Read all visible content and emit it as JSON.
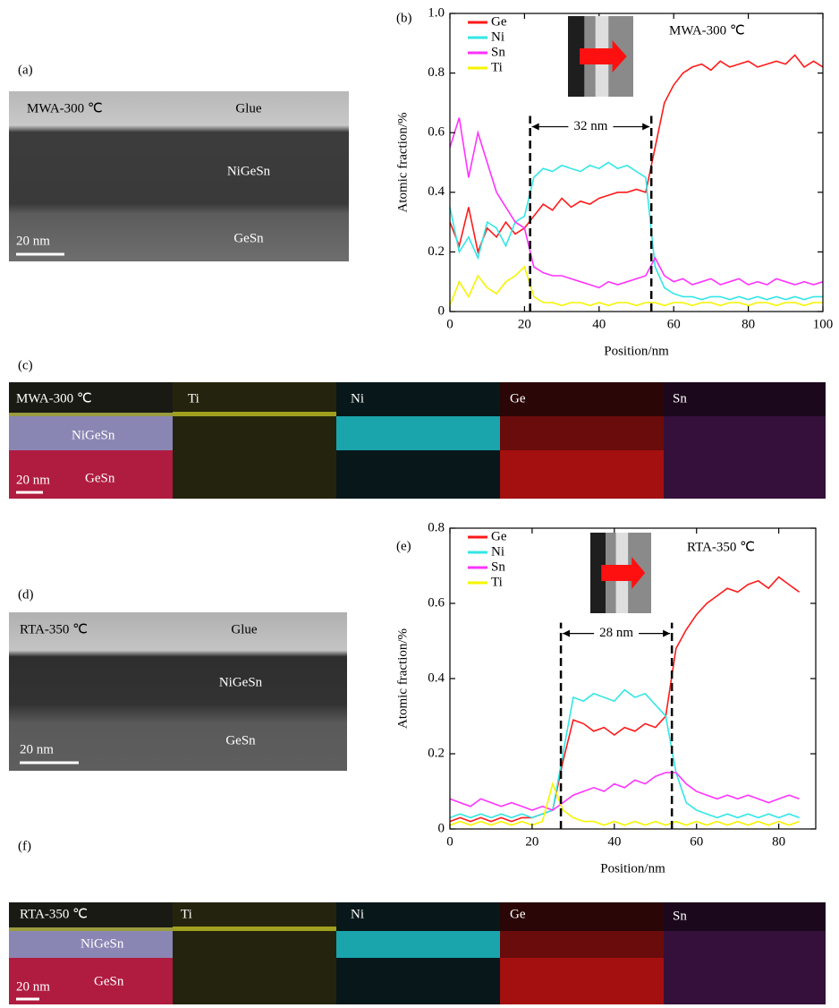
{
  "panels": {
    "a": {
      "label": "(a)",
      "sample": "MWA-300 ℃",
      "glue": "Glue",
      "layer": "NiGeSn",
      "substrate": "GeSn",
      "scale": "20 nm"
    },
    "b": {
      "label": "(b)"
    },
    "c": {
      "label": "(c)",
      "maps": [
        "MWA-300 ℃",
        "Ti",
        "Ni",
        "Ge",
        "Sn"
      ],
      "layer": "NiGeSn",
      "substrate": "GeSn",
      "scale": "20 nm"
    },
    "d": {
      "label": "(d)",
      "sample": "RTA-350 ℃",
      "glue": "Glue",
      "layer": "NiGeSn",
      "substrate": "GeSn",
      "scale": "20 nm"
    },
    "e": {
      "label": "(e)"
    },
    "f": {
      "label": "(f)",
      "maps": [
        "RTA-350 ℃",
        "Ti",
        "Ni",
        "Ge",
        "Sn"
      ],
      "layer": "NiGeSn",
      "substrate": "GeSn",
      "scale": "20 nm"
    }
  },
  "chart_data": [
    {
      "type": "line",
      "xlabel": "Position/nm",
      "ylabel": "Atomic fraction/%",
      "inset_title": "MWA-300 ℃",
      "xlim": [
        0,
        100
      ],
      "ylim": [
        0,
        1
      ],
      "xticks": [
        0,
        20,
        40,
        60,
        80,
        100
      ],
      "yticks": [
        0,
        0.2,
        0.4,
        0.6,
        0.8,
        {
          "value": 1,
          "label": "1.0"
        }
      ],
      "annotations": [
        {
          "text": "32 nm",
          "x": [
            21.5,
            54
          ],
          "y": 0.62
        }
      ],
      "x": [
        0,
        2.5,
        5,
        7.5,
        10,
        12.5,
        15,
        17.5,
        20,
        22.5,
        25,
        27.5,
        30,
        32.5,
        35,
        37.5,
        40,
        42.5,
        45,
        47.5,
        50,
        52.5,
        55,
        57.5,
        60,
        62.5,
        65,
        67.5,
        70,
        72.5,
        75,
        77.5,
        80,
        82.5,
        85,
        87.5,
        90,
        92.5,
        95,
        97.5,
        100
      ],
      "series": [
        {
          "name": "Ge",
          "color": "#ff1a1a",
          "values": [
            0.3,
            0.22,
            0.35,
            0.2,
            0.28,
            0.25,
            0.3,
            0.26,
            0.28,
            0.32,
            0.36,
            0.34,
            0.38,
            0.35,
            0.37,
            0.36,
            0.38,
            0.39,
            0.4,
            0.4,
            0.41,
            0.4,
            0.55,
            0.7,
            0.76,
            0.8,
            0.82,
            0.83,
            0.81,
            0.84,
            0.82,
            0.83,
            0.84,
            0.82,
            0.83,
            0.84,
            0.83,
            0.86,
            0.82,
            0.84,
            0.82
          ]
        },
        {
          "name": "Ni",
          "color": "#33e6e6",
          "values": [
            0.35,
            0.2,
            0.25,
            0.18,
            0.3,
            0.28,
            0.22,
            0.3,
            0.32,
            0.45,
            0.48,
            0.47,
            0.49,
            0.48,
            0.47,
            0.49,
            0.48,
            0.5,
            0.48,
            0.49,
            0.47,
            0.45,
            0.15,
            0.08,
            0.06,
            0.05,
            0.05,
            0.04,
            0.05,
            0.05,
            0.04,
            0.05,
            0.04,
            0.05,
            0.04,
            0.05,
            0.04,
            0.05,
            0.04,
            0.05,
            0.05
          ]
        },
        {
          "name": "Sn",
          "color": "#ff33ff",
          "values": [
            0.55,
            0.65,
            0.45,
            0.6,
            0.5,
            0.4,
            0.35,
            0.3,
            0.28,
            0.15,
            0.13,
            0.12,
            0.12,
            0.11,
            0.1,
            0.09,
            0.08,
            0.1,
            0.09,
            0.1,
            0.11,
            0.12,
            0.18,
            0.12,
            0.1,
            0.11,
            0.09,
            0.1,
            0.11,
            0.09,
            0.1,
            0.11,
            0.09,
            0.1,
            0.09,
            0.11,
            0.1,
            0.09,
            0.1,
            0.09,
            0.1
          ]
        },
        {
          "name": "Ti",
          "color": "#f5f500",
          "values": [
            0.02,
            0.1,
            0.05,
            0.12,
            0.08,
            0.06,
            0.1,
            0.12,
            0.15,
            0.05,
            0.03,
            0.03,
            0.02,
            0.03,
            0.03,
            0.02,
            0.03,
            0.02,
            0.03,
            0.03,
            0.02,
            0.03,
            0.03,
            0.02,
            0.03,
            0.03,
            0.02,
            0.03,
            0.03,
            0.02,
            0.03,
            0.03,
            0.02,
            0.03,
            0.03,
            0.02,
            0.03,
            0.03,
            0.02,
            0.03,
            0.03
          ]
        }
      ]
    },
    {
      "type": "line",
      "xlabel": "Position/nm",
      "ylabel": "Atomic fraction/%",
      "inset_title": "RTA-350 ℃",
      "xlim": [
        0,
        89
      ],
      "ylim": [
        0,
        0.8
      ],
      "xticks": [
        0,
        20,
        40,
        60,
        80
      ],
      "yticks": [
        0,
        0.2,
        0.4,
        0.6,
        0.8
      ],
      "annotations": [
        {
          "text": "28 nm",
          "x": [
            27,
            54
          ],
          "y": 0.52
        }
      ],
      "x": [
        0,
        2.5,
        5,
        7.5,
        10,
        12.5,
        15,
        17.5,
        20,
        22.5,
        25,
        27.5,
        30,
        32.5,
        35,
        37.5,
        40,
        42.5,
        45,
        47.5,
        50,
        52.5,
        55,
        57.5,
        60,
        62.5,
        65,
        67.5,
        70,
        72.5,
        75,
        77.5,
        80,
        82.5,
        85
      ],
      "series": [
        {
          "name": "Ge",
          "color": "#ff1a1a",
          "values": [
            0.02,
            0.03,
            0.02,
            0.03,
            0.02,
            0.03,
            0.02,
            0.03,
            0.03,
            0.04,
            0.05,
            0.18,
            0.29,
            0.28,
            0.26,
            0.27,
            0.25,
            0.27,
            0.26,
            0.28,
            0.27,
            0.3,
            0.48,
            0.53,
            0.57,
            0.6,
            0.62,
            0.64,
            0.63,
            0.65,
            0.66,
            0.64,
            0.67,
            0.65,
            0.63
          ]
        },
        {
          "name": "Ni",
          "color": "#33e6e6",
          "values": [
            0.03,
            0.04,
            0.03,
            0.04,
            0.03,
            0.04,
            0.03,
            0.04,
            0.03,
            0.04,
            0.05,
            0.2,
            0.35,
            0.34,
            0.36,
            0.35,
            0.34,
            0.37,
            0.35,
            0.36,
            0.33,
            0.3,
            0.15,
            0.07,
            0.05,
            0.04,
            0.03,
            0.04,
            0.03,
            0.04,
            0.03,
            0.04,
            0.03,
            0.04,
            0.03
          ]
        },
        {
          "name": "Sn",
          "color": "#ff33ff",
          "values": [
            0.08,
            0.07,
            0.06,
            0.08,
            0.07,
            0.06,
            0.07,
            0.06,
            0.05,
            0.06,
            0.05,
            0.07,
            0.09,
            0.1,
            0.11,
            0.1,
            0.12,
            0.11,
            0.13,
            0.12,
            0.14,
            0.15,
            0.15,
            0.12,
            0.1,
            0.09,
            0.08,
            0.09,
            0.08,
            0.09,
            0.08,
            0.07,
            0.08,
            0.09,
            0.08
          ]
        },
        {
          "name": "Ti",
          "color": "#f5f500",
          "values": [
            0.01,
            0.02,
            0.01,
            0.02,
            0.01,
            0.02,
            0.01,
            0.02,
            0.01,
            0.02,
            0.12,
            0.05,
            0.03,
            0.02,
            0.02,
            0.01,
            0.02,
            0.01,
            0.02,
            0.01,
            0.02,
            0.01,
            0.02,
            0.01,
            0.02,
            0.01,
            0.02,
            0.01,
            0.02,
            0.01,
            0.02,
            0.01,
            0.02,
            0.01,
            0.02
          ]
        }
      ]
    }
  ]
}
